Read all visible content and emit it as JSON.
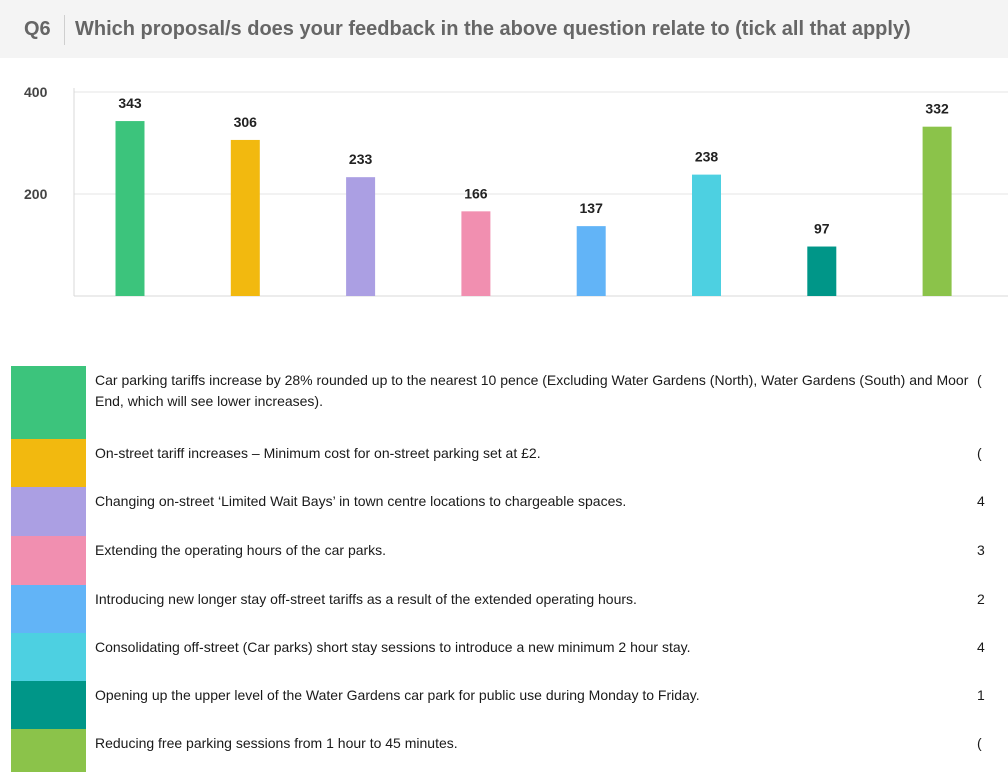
{
  "question": {
    "number": "Q6",
    "text": "Which proposal/s does your feedback in the above question relate to (tick all that apply)"
  },
  "chart_data": {
    "type": "bar",
    "categories": [
      "Car parking tariffs increase by 28% rounded up to the nearest 10 pence (Excluding Water Gardens (North), Water Gardens (South) and Moor End, which will see lower increases).",
      "On-street tariff increases – Minimum cost for on-street parking set at £2.",
      "Changing on-street ‘Limited Wait Bays’ in town centre locations to chargeable spaces.",
      "Extending the operating hours of the car parks.",
      "Introducing new longer stay off-street tariffs as a result of the extended operating hours.",
      "Consolidating off-street (Car parks) short stay sessions to introduce a new minimum 2 hour stay.",
      "Opening up the upper level of the Water Gardens car park for public use during Monday to Friday.",
      "Reducing free parking sessions from 1 hour to 45 minutes."
    ],
    "values": [
      343,
      306,
      233,
      166,
      137,
      238,
      97,
      332
    ],
    "colors": [
      "#3cc47c",
      "#f2b90f",
      "#ab9fe3",
      "#f18fb0",
      "#62b4f7",
      "#4dd0e1",
      "#009688",
      "#8bc34a"
    ],
    "yticks": [
      "200",
      "400"
    ],
    "ylim": [
      0,
      400
    ],
    "grid": true,
    "legend_position": "bottom",
    "legend_counts": [
      "(",
      "(",
      "4",
      "3",
      "2",
      "4",
      "1",
      "("
    ],
    "title": "",
    "xlabel": "",
    "ylabel": ""
  }
}
